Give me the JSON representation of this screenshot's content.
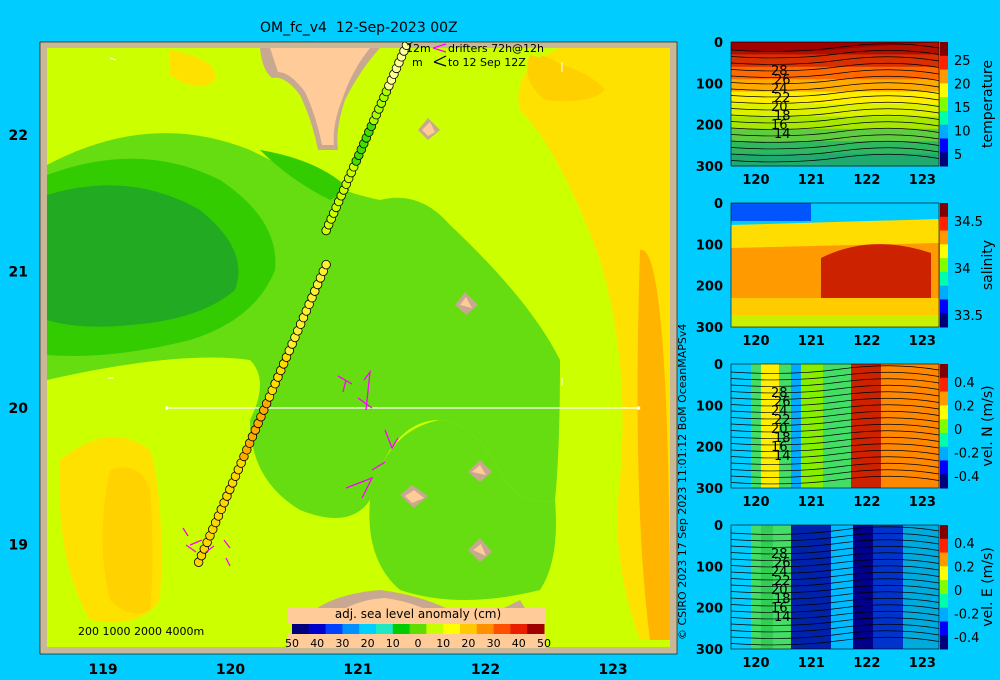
{
  "map": {
    "title": "OM_fc_v4  12-Sep-2023 00Z",
    "lon_ticks": [
      "119",
      "120",
      "121",
      "122",
      "123"
    ],
    "lat_ticks": [
      "19",
      "20",
      "21",
      "22"
    ],
    "legend_line1": "12m",
    "legend_line1b": "drifters 72h@12h",
    "legend_line2": "m",
    "legend_line2b": "to 12 Sep 12Z",
    "bathy_legend": "200  1000  2000  4000m",
    "colorbar_title": "adj. sea level anomaly (cm)",
    "colorbar_ticks": [
      "50",
      "40",
      "30",
      "20",
      "10",
      "0",
      "10",
      "20",
      "30",
      "40",
      "50"
    ],
    "colorbar_colors": [
      "#00007f",
      "#0000cc",
      "#0040ff",
      "#0090ff",
      "#00d0ff",
      "#20e8c0",
      "#00cc00",
      "#60dd00",
      "#c8ff00",
      "#ffff00",
      "#ffc800",
      "#ff9000",
      "#ff5000",
      "#e82000",
      "#a00000"
    ]
  },
  "copyright": "© CSIRO 2023    17 Sep 2023 11:01:12 BoM OceanMAPSv4",
  "panels": [
    {
      "label": "temperature",
      "cb_ticks": [
        "25",
        "20",
        "15",
        "10",
        "5"
      ],
      "cb_colors": [
        "#00007f",
        "#0000ff",
        "#00aaff",
        "#00ffaa",
        "#80ff00",
        "#ffff00",
        "#ff9900",
        "#ff2200",
        "#800000"
      ],
      "contours": [
        "28",
        "26",
        "24",
        "22",
        "20",
        "18",
        "16",
        "14"
      ]
    },
    {
      "label": "salinity",
      "cb_ticks": [
        "34.5",
        "34",
        "33.5"
      ],
      "cb_colors": [
        "#00007f",
        "#0000ff",
        "#00aaff",
        "#00ffaa",
        "#80ff00",
        "#ffff00",
        "#ff9900",
        "#ff2200",
        "#800000"
      ],
      "contours": []
    },
    {
      "label": "vel. N (m/s)",
      "cb_ticks": [
        "0.4",
        "0.2",
        "0",
        "-0.2",
        "-0.4"
      ],
      "cb_colors": [
        "#00007f",
        "#0000ff",
        "#00aaff",
        "#00ffaa",
        "#80ff00",
        "#ffff00",
        "#ff9900",
        "#ff2200",
        "#800000"
      ],
      "contours": [
        "28",
        "26",
        "24",
        "22",
        "20",
        "18",
        "16",
        "14"
      ]
    },
    {
      "label": "vel. E (m/s)",
      "cb_ticks": [
        "0.4",
        "0.2",
        "0",
        "-0.2",
        "-0.4"
      ],
      "cb_colors": [
        "#00007f",
        "#0000ff",
        "#00aaff",
        "#00ffaa",
        "#80ff00",
        "#ffff00",
        "#ff9900",
        "#ff2200",
        "#800000"
      ],
      "contours": [
        "28",
        "26",
        "24",
        "22",
        "20",
        "18",
        "16",
        "14"
      ]
    }
  ],
  "chart_data": [
    {
      "type": "heatmap",
      "title": "OM_fc_v4  12-Sep-2023 00Z",
      "xlabel": "",
      "ylabel": "",
      "xlim": [
        118.5,
        123.5
      ],
      "ylim": [
        18.3,
        22.7
      ],
      "colorbar_label": "adj. sea level anomaly (cm)",
      "colorbar_range": [
        -50,
        50
      ],
      "section_line": {
        "lon": [
          119.5,
          123.2
        ],
        "lat": [
          20,
          20
        ]
      },
      "drifter_track": {
        "lon": [
          119.75,
          120.75
        ],
        "lat": [
          18.87,
          21.05
        ]
      },
      "drifter_track_north": {
        "lon": [
          120.75,
          121.4
        ],
        "lat": [
          21.3,
          22.7
        ]
      }
    },
    {
      "type": "heatmap",
      "xlabel": "",
      "ylabel": "",
      "x_ticks": [
        "120",
        "121",
        "122",
        "123"
      ],
      "y_ticks": [
        "0",
        "100",
        "200",
        "300"
      ],
      "ylim": [
        300,
        0
      ],
      "colorbar_label": "temperature",
      "colorbar_range": [
        3,
        29
      ]
    },
    {
      "type": "heatmap",
      "xlabel": "",
      "ylabel": "",
      "x_ticks": [
        "120",
        "121",
        "122",
        "123"
      ],
      "y_ticks": [
        "0",
        "100",
        "200",
        "300"
      ],
      "ylim": [
        300,
        0
      ],
      "colorbar_label": "salinity",
      "colorbar_range": [
        33.4,
        34.9
      ]
    },
    {
      "type": "heatmap",
      "xlabel": "",
      "ylabel": "",
      "x_ticks": [
        "120",
        "121",
        "122",
        "123"
      ],
      "y_ticks": [
        "0",
        "100",
        "200",
        "300"
      ],
      "ylim": [
        300,
        0
      ],
      "colorbar_label": "vel. N (m/s)",
      "colorbar_range": [
        -0.45,
        0.45
      ]
    },
    {
      "type": "heatmap",
      "xlabel": "",
      "ylabel": "",
      "x_ticks": [
        "120",
        "121",
        "122",
        "123"
      ],
      "y_ticks": [
        "0",
        "100",
        "200",
        "300"
      ],
      "ylim": [
        300,
        0
      ],
      "colorbar_label": "vel. E (m/s)",
      "colorbar_range": [
        -0.45,
        0.45
      ]
    }
  ]
}
